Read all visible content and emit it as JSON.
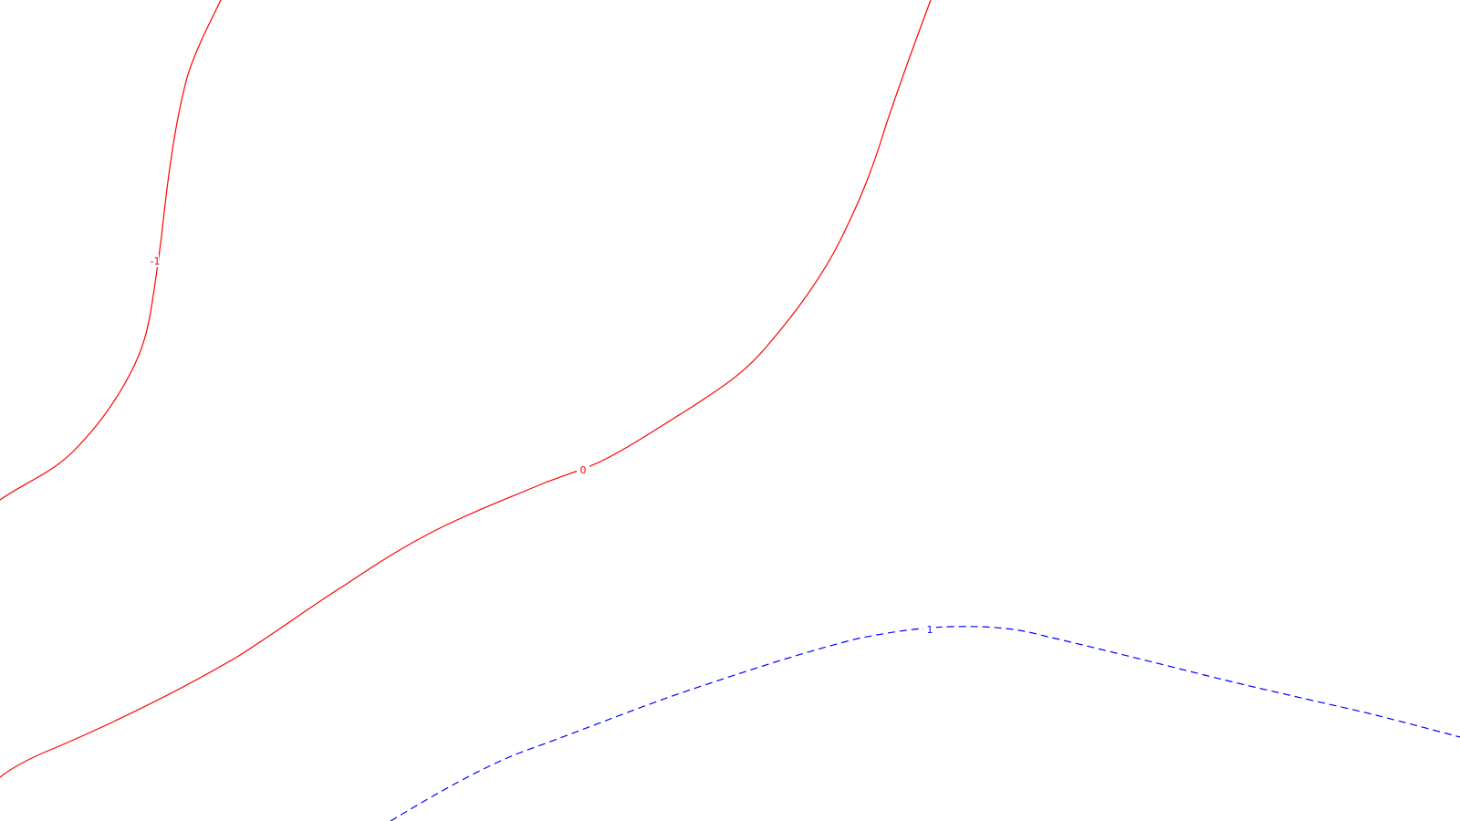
{
  "contours": [
    {
      "id": "contour-minus-1",
      "label": "-1",
      "color": "#ff0000",
      "style": "solid"
    },
    {
      "id": "contour-0",
      "label": "0",
      "color": "#ff0000",
      "style": "solid"
    },
    {
      "id": "contour-plus-1",
      "label": "1",
      "color": "#0000ff",
      "style": "dashed"
    }
  ]
}
